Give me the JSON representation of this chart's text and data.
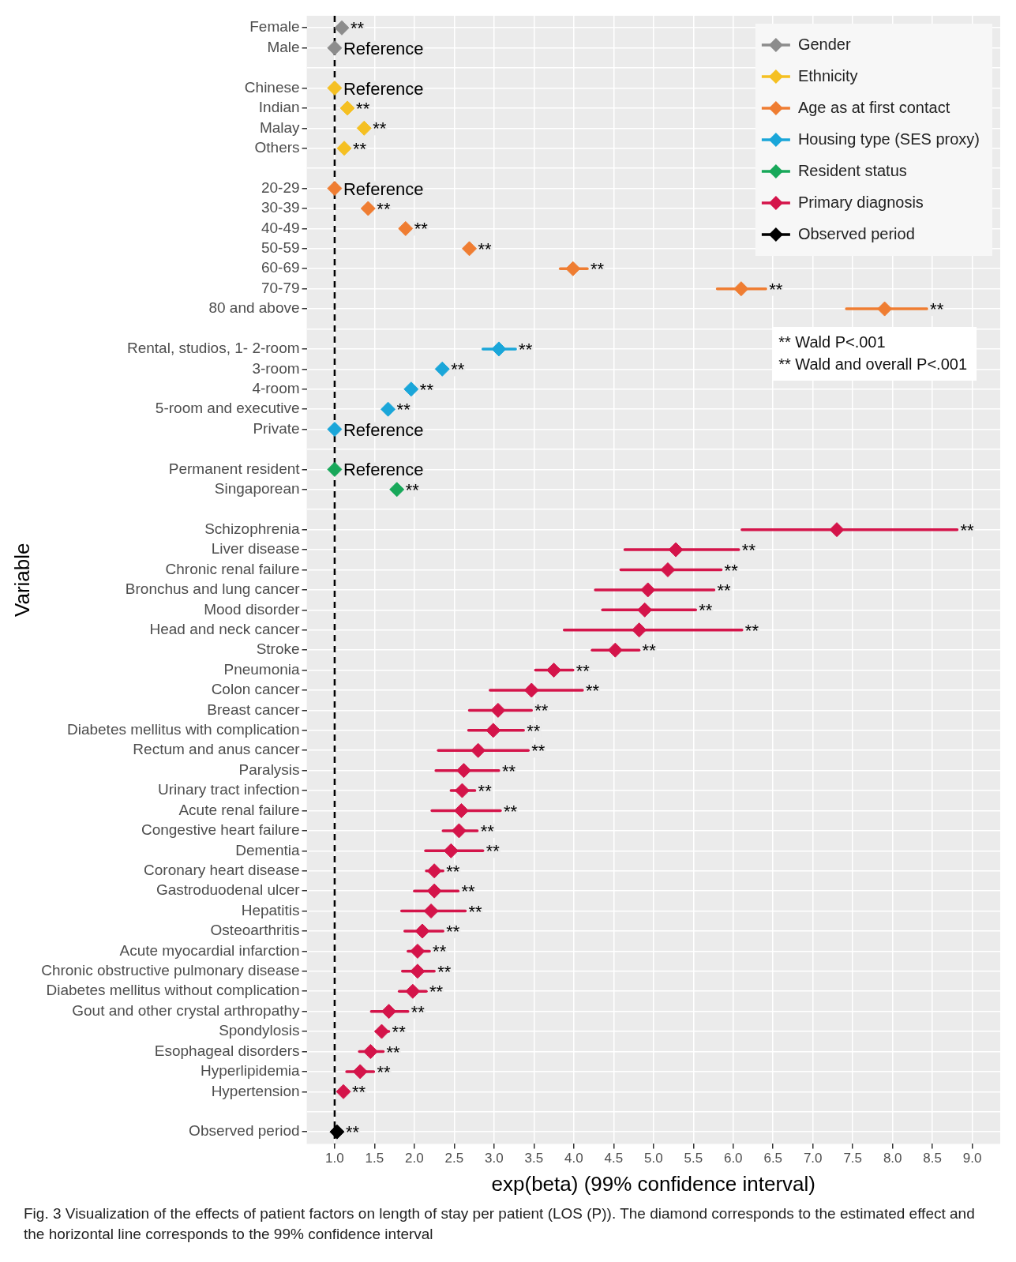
{
  "chart_data": {
    "type": "scatter",
    "orientation": "horizontal",
    "xlabel": "exp(beta) (99% confidence interval)",
    "ylabel": "Variable",
    "categories": [
      "Female",
      "Male",
      null,
      "Chinese",
      "Indian",
      "Malay",
      "Others",
      null,
      "20-29",
      "30-39",
      "40-49",
      "50-59",
      "60-69",
      "70-79",
      "80 and above",
      null,
      "Rental, studios, 1- 2-room",
      "3-room",
      "4-room",
      "5-room and executive",
      "Private",
      null,
      "Permanent resident",
      "Singaporean",
      null,
      "Schizophrenia",
      "Liver disease",
      "Chronic renal failure",
      "Bronchus and lung cancer",
      "Mood disorder",
      "Head and neck cancer",
      "Stroke",
      "Pneumonia",
      "Colon cancer",
      "Breast cancer",
      "Diabetes mellitus with complication",
      "Rectum and anus cancer",
      "Paralysis",
      "Urinary tract infection",
      "Acute renal failure",
      "Congestive heart failure",
      "Dementia",
      "Coronary heart disease",
      "Gastroduodenal ulcer",
      "Hepatitis",
      "Osteoarthritis",
      "Acute myocardial infarction",
      "Chronic obstructive pulmonary disease",
      "Diabetes mellitus without complication",
      "Gout and other crystal arthropathy",
      "Spondylosis",
      "Esophageal disorders",
      "Hyperlipidemia",
      "Hypertension",
      null,
      "Observed period"
    ],
    "series": [
      {
        "name": "Gender",
        "color": "#8c8c8c",
        "values": [
          1.09,
          1.0,
          null,
          null,
          null,
          null,
          null,
          null,
          null,
          null,
          null,
          null,
          null,
          null,
          null,
          null,
          null,
          null,
          null,
          null,
          null,
          null,
          null,
          null,
          null,
          null,
          null,
          null,
          null,
          null,
          null,
          null,
          null,
          null,
          null,
          null,
          null,
          null,
          null,
          null,
          null,
          null,
          null,
          null,
          null,
          null,
          null,
          null,
          null,
          null,
          null,
          null,
          null,
          null,
          null,
          null
        ]
      },
      {
        "name": "Ethnicity",
        "color": "#f5c022",
        "values": [
          null,
          null,
          null,
          1.0,
          1.16,
          1.37,
          1.12,
          null,
          null,
          null,
          null,
          null,
          null,
          null,
          null,
          null,
          null,
          null,
          null,
          null,
          null,
          null,
          null,
          null,
          null,
          null,
          null,
          null,
          null,
          null,
          null,
          null,
          null,
          null,
          null,
          null,
          null,
          null,
          null,
          null,
          null,
          null,
          null,
          null,
          null,
          null,
          null,
          null,
          null,
          null,
          null,
          null,
          null,
          null,
          null,
          null
        ]
      },
      {
        "name": "Age as at first contact",
        "color": "#ef7d32",
        "values": [
          null,
          null,
          null,
          null,
          null,
          null,
          null,
          null,
          1.0,
          1.42,
          1.89,
          2.69,
          3.99,
          6.1,
          7.9,
          null,
          null,
          null,
          null,
          null,
          null,
          null,
          null,
          null,
          null,
          null,
          null,
          null,
          null,
          null,
          null,
          null,
          null,
          null,
          null,
          null,
          null,
          null,
          null,
          null,
          null,
          null,
          null,
          null,
          null,
          null,
          null,
          null,
          null,
          null,
          null,
          null,
          null,
          null,
          null,
          null
        ],
        "errors": [
          null,
          null,
          null,
          null,
          null,
          null,
          null,
          null,
          null,
          null,
          null,
          null,
          [
            3.83,
            4.17
          ],
          [
            5.8,
            6.41
          ],
          [
            7.42,
            8.43
          ],
          null,
          null,
          null,
          null,
          null,
          null,
          null,
          null,
          null,
          null,
          null,
          null,
          null,
          null,
          null,
          null,
          null,
          null,
          null,
          null,
          null,
          null,
          null,
          null,
          null,
          null,
          null,
          null,
          null,
          null,
          null,
          null,
          null,
          null,
          null,
          null,
          null,
          null,
          null,
          null,
          null
        ]
      },
      {
        "name": "Housing type (SES proxy)",
        "color": "#1aa6d9",
        "values": [
          null,
          null,
          null,
          null,
          null,
          null,
          null,
          null,
          null,
          null,
          null,
          null,
          null,
          null,
          null,
          null,
          3.06,
          2.35,
          1.96,
          1.67,
          1.0,
          null,
          null,
          null,
          null,
          null,
          null,
          null,
          null,
          null,
          null,
          null,
          null,
          null,
          null,
          null,
          null,
          null,
          null,
          null,
          null,
          null,
          null,
          null,
          null,
          null,
          null,
          null,
          null,
          null,
          null,
          null,
          null,
          null,
          null,
          null
        ],
        "errors": [
          null,
          null,
          null,
          null,
          null,
          null,
          null,
          null,
          null,
          null,
          null,
          null,
          null,
          null,
          null,
          null,
          [
            2.86,
            3.27
          ],
          null,
          null,
          null,
          null,
          null,
          null,
          null,
          null,
          null,
          null,
          null,
          null,
          null,
          null,
          null,
          null,
          null,
          null,
          null,
          null,
          null,
          null,
          null,
          null,
          null,
          null,
          null,
          null,
          null,
          null,
          null,
          null,
          null,
          null,
          null,
          null,
          null,
          null,
          null
        ]
      },
      {
        "name": "Resident status",
        "color": "#18a85a",
        "values": [
          null,
          null,
          null,
          null,
          null,
          null,
          null,
          null,
          null,
          null,
          null,
          null,
          null,
          null,
          null,
          null,
          null,
          null,
          null,
          null,
          null,
          null,
          1.0,
          1.78,
          null,
          null,
          null,
          null,
          null,
          null,
          null,
          null,
          null,
          null,
          null,
          null,
          null,
          null,
          null,
          null,
          null,
          null,
          null,
          null,
          null,
          null,
          null,
          null,
          null,
          null,
          null,
          null,
          null,
          null,
          null,
          null
        ]
      },
      {
        "name": "Primary diagnosis",
        "color": "#d4144a",
        "values": [
          null,
          null,
          null,
          null,
          null,
          null,
          null,
          null,
          null,
          null,
          null,
          null,
          null,
          null,
          null,
          null,
          null,
          null,
          null,
          null,
          null,
          null,
          null,
          null,
          null,
          7.3,
          5.28,
          5.18,
          4.93,
          4.89,
          4.82,
          4.52,
          3.75,
          3.47,
          3.05,
          2.99,
          2.8,
          2.62,
          2.6,
          2.59,
          2.56,
          2.46,
          2.25,
          2.25,
          2.21,
          2.1,
          2.04,
          2.04,
          1.98,
          1.68,
          1.59,
          1.45,
          1.32,
          1.11,
          null,
          null
        ],
        "errors": [
          null,
          null,
          null,
          null,
          null,
          null,
          null,
          null,
          null,
          null,
          null,
          null,
          null,
          null,
          null,
          null,
          null,
          null,
          null,
          null,
          null,
          null,
          null,
          null,
          null,
          [
            6.11,
            8.81
          ],
          [
            4.64,
            6.07
          ],
          [
            4.59,
            5.85
          ],
          [
            4.27,
            5.76
          ],
          [
            4.36,
            5.53
          ],
          [
            3.88,
            6.11
          ],
          [
            4.23,
            4.82
          ],
          [
            3.52,
            3.99
          ],
          [
            2.95,
            4.11
          ],
          [
            2.69,
            3.47
          ],
          [
            2.68,
            3.37
          ],
          [
            2.3,
            3.43
          ],
          [
            2.27,
            3.06
          ],
          [
            2.46,
            2.76
          ],
          [
            2.22,
            3.08
          ],
          [
            2.36,
            2.79
          ],
          [
            2.14,
            2.86
          ],
          [
            2.15,
            2.36
          ],
          [
            2.0,
            2.55
          ],
          [
            1.84,
            2.64
          ],
          [
            1.88,
            2.36
          ],
          [
            1.92,
            2.19
          ],
          [
            1.85,
            2.25
          ],
          [
            1.81,
            2.15
          ],
          [
            1.46,
            1.92
          ],
          [
            1.52,
            1.68
          ],
          [
            1.31,
            1.61
          ],
          [
            1.15,
            1.49
          ],
          null,
          null,
          null
        ]
      },
      {
        "name": "Observed period",
        "color": "#000000",
        "values": [
          null,
          null,
          null,
          null,
          null,
          null,
          null,
          null,
          null,
          null,
          null,
          null,
          null,
          null,
          null,
          null,
          null,
          null,
          null,
          null,
          null,
          null,
          null,
          null,
          null,
          null,
          null,
          null,
          null,
          null,
          null,
          null,
          null,
          null,
          null,
          null,
          null,
          null,
          null,
          null,
          null,
          null,
          null,
          null,
          null,
          null,
          null,
          null,
          null,
          null,
          null,
          null,
          null,
          null,
          null,
          1.03
        ]
      }
    ],
    "xlim": [
      0.65,
      9.35
    ],
    "xticks": [
      {
        "value": 1,
        "label": "1.0"
      },
      1.5,
      {
        "value": 2,
        "label": "2.0"
      },
      2.5,
      {
        "value": 3,
        "label": "3.0"
      },
      3.5,
      {
        "value": 4,
        "label": "4.0"
      },
      4.5,
      {
        "value": 5,
        "label": "5.0"
      },
      5.5,
      {
        "value": 6,
        "label": "6.0"
      },
      6.5,
      {
        "value": 7,
        "label": "7.0"
      },
      7.5,
      {
        "value": 8,
        "label": "8.0"
      },
      8.5,
      {
        "value": 9,
        "label": "9.0"
      }
    ],
    "ref_lines": [
      {
        "axis": "x",
        "value": 1,
        "color": "#000000",
        "line_style": "dashed"
      }
    ],
    "grid": true,
    "legend": "top right",
    "marker": "diamond",
    "annotations": [
      {
        "text": "**",
        "x": 1.09,
        "y": "Female"
      },
      {
        "text": "Reference",
        "x": 1.0,
        "y": "Male"
      },
      {
        "text": "Reference",
        "x": 1.0,
        "y": "Chinese"
      },
      {
        "text": "**",
        "x": 1.16,
        "y": "Indian"
      },
      {
        "text": "**",
        "x": 1.37,
        "y": "Malay"
      },
      {
        "text": "**",
        "x": 1.12,
        "y": "Others"
      },
      {
        "text": "Reference",
        "x": 1.0,
        "y": "20-29"
      },
      {
        "text": "**",
        "x": 1.42,
        "y": "30-39"
      },
      {
        "text": "**",
        "x": 1.89,
        "y": "40-49"
      },
      {
        "text": "**",
        "x": 2.69,
        "y": "50-59"
      },
      {
        "text": "**",
        "x": 4.17,
        "y": "60-69"
      },
      {
        "text": "**",
        "x": 6.41,
        "y": "70-79"
      },
      {
        "text": "**",
        "x": 8.43,
        "y": "80 and above"
      },
      {
        "text": "**",
        "x": 3.27,
        "y": "Rental, studios, 1- 2-room"
      },
      {
        "text": "**",
        "x": 2.35,
        "y": "3-room"
      },
      {
        "text": "**",
        "x": 1.96,
        "y": "4-room"
      },
      {
        "text": "**",
        "x": 1.67,
        "y": "5-room and executive"
      },
      {
        "text": "Reference",
        "x": 1.0,
        "y": "Private"
      },
      {
        "text": "Reference",
        "x": 1.0,
        "y": "Permanent resident"
      },
      {
        "text": "**",
        "x": 1.78,
        "y": "Singaporean"
      },
      {
        "text": "**",
        "x": 8.81,
        "y": "Schizophrenia"
      },
      {
        "text": "**",
        "x": 6.07,
        "y": "Liver disease"
      },
      {
        "text": "**",
        "x": 5.85,
        "y": "Chronic renal failure"
      },
      {
        "text": "**",
        "x": 5.76,
        "y": "Bronchus and lung cancer"
      },
      {
        "text": "**",
        "x": 5.53,
        "y": "Mood disorder"
      },
      {
        "text": "**",
        "x": 6.11,
        "y": "Head and neck cancer"
      },
      {
        "text": "**",
        "x": 4.82,
        "y": "Stroke"
      },
      {
        "text": "**",
        "x": 3.99,
        "y": "Pneumonia"
      },
      {
        "text": "**",
        "x": 4.11,
        "y": "Colon cancer"
      },
      {
        "text": "**",
        "x": 3.47,
        "y": "Breast cancer"
      },
      {
        "text": "**",
        "x": 3.37,
        "y": "Diabetes mellitus with complication"
      },
      {
        "text": "**",
        "x": 3.43,
        "y": "Rectum and anus cancer"
      },
      {
        "text": "**",
        "x": 3.06,
        "y": "Paralysis"
      },
      {
        "text": "**",
        "x": 2.76,
        "y": "Urinary tract infection"
      },
      {
        "text": "**",
        "x": 3.08,
        "y": "Acute renal failure"
      },
      {
        "text": "**",
        "x": 2.79,
        "y": "Congestive heart failure"
      },
      {
        "text": "**",
        "x": 2.86,
        "y": "Dementia"
      },
      {
        "text": "**",
        "x": 2.36,
        "y": "Coronary heart disease"
      },
      {
        "text": "**",
        "x": 2.55,
        "y": "Gastroduodenal ulcer"
      },
      {
        "text": "**",
        "x": 2.64,
        "y": "Hepatitis"
      },
      {
        "text": "**",
        "x": 2.36,
        "y": "Osteoarthritis"
      },
      {
        "text": "**",
        "x": 2.19,
        "y": "Acute myocardial infarction"
      },
      {
        "text": "**",
        "x": 2.25,
        "y": "Chronic obstructive pulmonary disease"
      },
      {
        "text": "**",
        "x": 2.15,
        "y": "Diabetes mellitus without complication"
      },
      {
        "text": "**",
        "x": 1.92,
        "y": "Gout and other crystal arthropathy"
      },
      {
        "text": "**",
        "x": 1.68,
        "y": "Spondylosis"
      },
      {
        "text": "**",
        "x": 1.61,
        "y": "Esophageal disorders"
      },
      {
        "text": "**",
        "x": 1.49,
        "y": "Hyperlipidemia"
      },
      {
        "text": "**",
        "x": 1.11,
        "y": "Hypertension"
      },
      {
        "text": "**",
        "x": 1.03,
        "y": "Observed period"
      },
      "** Wald P<.001",
      "** Wald and overall P<.001",
      "Fig. 3 Visualization of the effects of patient factors on length of stay per patient (LOS (P)). The diamond corresponds to the estimated effect and the horizontal line corresponds to the 99% confidence interval"
    ]
  }
}
